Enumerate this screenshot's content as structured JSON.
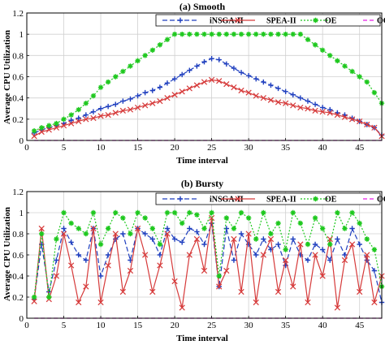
{
  "chart_data": [
    {
      "type": "line",
      "title": "(a) Smooth",
      "xlabel": "Time interval",
      "ylabel": "Average CPU Utilization",
      "xlim": [
        0,
        48
      ],
      "ylim": [
        0,
        1.2
      ],
      "xticks": [
        0,
        5,
        10,
        15,
        20,
        25,
        30,
        35,
        40,
        45
      ],
      "yticks": [
        0,
        0.2,
        0.4,
        0.6,
        0.8,
        1,
        1.2
      ],
      "grid": true,
      "legend": {
        "placement": "top",
        "columns": 4
      },
      "x": [
        1,
        2,
        3,
        4,
        5,
        6,
        7,
        8,
        9,
        10,
        11,
        12,
        13,
        14,
        15,
        16,
        17,
        18,
        19,
        20,
        21,
        22,
        23,
        24,
        25,
        26,
        27,
        28,
        29,
        30,
        31,
        32,
        33,
        34,
        35,
        36,
        37,
        38,
        39,
        40,
        41,
        42,
        43,
        44,
        45,
        46,
        47,
        48
      ],
      "series": [
        {
          "name": "iNSGA-II",
          "color": "#1f3fbf",
          "dash": "6,3",
          "marker": "plus",
          "values": [
            0.07,
            0.1,
            0.12,
            0.14,
            0.16,
            0.19,
            0.21,
            0.24,
            0.27,
            0.3,
            0.32,
            0.34,
            0.37,
            0.39,
            0.42,
            0.45,
            0.47,
            0.5,
            0.54,
            0.58,
            0.62,
            0.66,
            0.7,
            0.74,
            0.77,
            0.76,
            0.72,
            0.68,
            0.64,
            0.61,
            0.58,
            0.55,
            0.52,
            0.49,
            0.46,
            0.43,
            0.4,
            0.37,
            0.34,
            0.31,
            0.29,
            0.26,
            0.24,
            0.21,
            0.18,
            0.15,
            0.12,
            0.05
          ]
        },
        {
          "name": "SPEA-II",
          "color": "#d63a3a",
          "dash": "",
          "marker": "x",
          "values": [
            0.04,
            0.08,
            0.1,
            0.12,
            0.14,
            0.16,
            0.18,
            0.2,
            0.21,
            0.23,
            0.24,
            0.26,
            0.28,
            0.29,
            0.31,
            0.33,
            0.35,
            0.37,
            0.4,
            0.43,
            0.46,
            0.49,
            0.52,
            0.55,
            0.57,
            0.56,
            0.53,
            0.5,
            0.47,
            0.45,
            0.42,
            0.4,
            0.38,
            0.36,
            0.35,
            0.33,
            0.31,
            0.3,
            0.28,
            0.27,
            0.26,
            0.24,
            0.22,
            0.2,
            0.18,
            0.15,
            0.12,
            0.04
          ]
        },
        {
          "name": "OE",
          "color": "#1ec81e",
          "dash": "2,2",
          "marker": "star",
          "values": [
            0.09,
            0.12,
            0.14,
            0.16,
            0.2,
            0.24,
            0.29,
            0.35,
            0.42,
            0.5,
            0.55,
            0.6,
            0.65,
            0.7,
            0.75,
            0.8,
            0.85,
            0.9,
            0.95,
            1,
            1,
            1,
            1,
            1,
            1,
            1,
            1,
            1,
            1,
            1,
            1,
            1,
            1,
            1,
            1,
            1,
            1,
            0.95,
            0.9,
            0.85,
            0.8,
            0.75,
            0.7,
            0.65,
            0.6,
            0.55,
            0.45,
            0.35
          ]
        },
        {
          "name": "OC",
          "color": "#e81ee8",
          "dash": "5,3",
          "marker": "none",
          "values": [
            0,
            0,
            0,
            0,
            0,
            0,
            0,
            0,
            0,
            0,
            0,
            0,
            0,
            0,
            0,
            0,
            0,
            0,
            0,
            0,
            0,
            0,
            0,
            0,
            0,
            0,
            0,
            0,
            0,
            0,
            0,
            0,
            0,
            0,
            0,
            0,
            0,
            0,
            0,
            0,
            0,
            0,
            0,
            0,
            0,
            0,
            0,
            0
          ]
        }
      ]
    },
    {
      "type": "line",
      "title": "(b) Bursty",
      "xlabel": "Time interval",
      "ylabel": "Average CPU Utilization",
      "xlim": [
        0,
        48
      ],
      "ylim": [
        0,
        1.2
      ],
      "xticks": [
        0,
        5,
        10,
        15,
        20,
        25,
        30,
        35,
        40,
        45
      ],
      "yticks": [
        0,
        0.2,
        0.4,
        0.6,
        0.8,
        1,
        1.2
      ],
      "grid": true,
      "legend": {
        "placement": "top",
        "columns": 4
      },
      "x": [
        1,
        2,
        3,
        4,
        5,
        6,
        7,
        8,
        9,
        10,
        11,
        12,
        13,
        14,
        15,
        16,
        17,
        18,
        19,
        20,
        21,
        22,
        23,
        24,
        25,
        26,
        27,
        28,
        29,
        30,
        31,
        32,
        33,
        34,
        35,
        36,
        37,
        38,
        39,
        40,
        41,
        42,
        43,
        44,
        45,
        46,
        47,
        48
      ],
      "series": [
        {
          "name": "iNSGA-II",
          "color": "#1f3fbf",
          "dash": "6,3",
          "marker": "plus",
          "values": [
            0.18,
            0.7,
            0.25,
            0.55,
            0.85,
            0.72,
            0.6,
            0.55,
            0.85,
            0.4,
            0.6,
            0.75,
            0.8,
            0.55,
            0.85,
            0.8,
            0.75,
            0.6,
            0.85,
            0.75,
            0.72,
            0.85,
            0.82,
            0.7,
            0.9,
            0.3,
            0.85,
            0.55,
            0.8,
            0.7,
            0.6,
            0.75,
            0.65,
            0.7,
            0.5,
            0.75,
            0.6,
            0.55,
            0.7,
            0.65,
            0.55,
            0.75,
            0.6,
            0.85,
            0.7,
            0.55,
            0.45,
            0.15
          ]
        },
        {
          "name": "SPEA-II",
          "color": "#d63a3a",
          "dash": "",
          "marker": "x",
          "values": [
            0.16,
            0.85,
            0.18,
            0.4,
            0.8,
            0.5,
            0.15,
            0.3,
            0.85,
            0.15,
            0.5,
            0.8,
            0.25,
            0.45,
            0.85,
            0.6,
            0.25,
            0.5,
            0.8,
            0.35,
            0.1,
            0.6,
            0.75,
            0.45,
            0.95,
            0.3,
            0.45,
            0.75,
            0.25,
            0.8,
            0.15,
            0.6,
            0.75,
            0.25,
            0.55,
            0.3,
            0.7,
            0.15,
            0.6,
            0.4,
            0.75,
            0.1,
            0.55,
            0.7,
            0.25,
            0.6,
            0.15,
            0.4
          ]
        },
        {
          "name": "OE",
          "color": "#1ec81e",
          "dash": "2,2",
          "marker": "star",
          "values": [
            0.2,
            0.8,
            0.2,
            0.75,
            1,
            0.9,
            0.85,
            0.8,
            1,
            0.7,
            0.85,
            1,
            0.95,
            0.8,
            1,
            0.95,
            0.85,
            0.7,
            1,
            1,
            0.9,
            1,
            0.98,
            0.85,
            1,
            0.4,
            0.95,
            0.85,
            1,
            0.95,
            0.75,
            1,
            0.8,
            0.9,
            0.65,
            1,
            0.9,
            0.7,
            0.95,
            0.85,
            0.7,
            1,
            0.85,
            1,
            0.9,
            0.75,
            0.65,
            0.3
          ]
        },
        {
          "name": "OC",
          "color": "#e81ee8",
          "dash": "5,3",
          "marker": "none",
          "values": [
            0,
            0,
            0,
            0,
            0,
            0,
            0,
            0,
            0,
            0,
            0,
            0,
            0,
            0,
            0,
            0,
            0,
            0,
            0,
            0,
            0,
            0,
            0,
            0,
            0,
            0,
            0,
            0,
            0,
            0,
            0,
            0,
            0,
            0,
            0,
            0,
            0,
            0,
            0,
            0,
            0,
            0,
            0,
            0,
            0,
            0,
            0,
            0
          ]
        }
      ]
    }
  ]
}
